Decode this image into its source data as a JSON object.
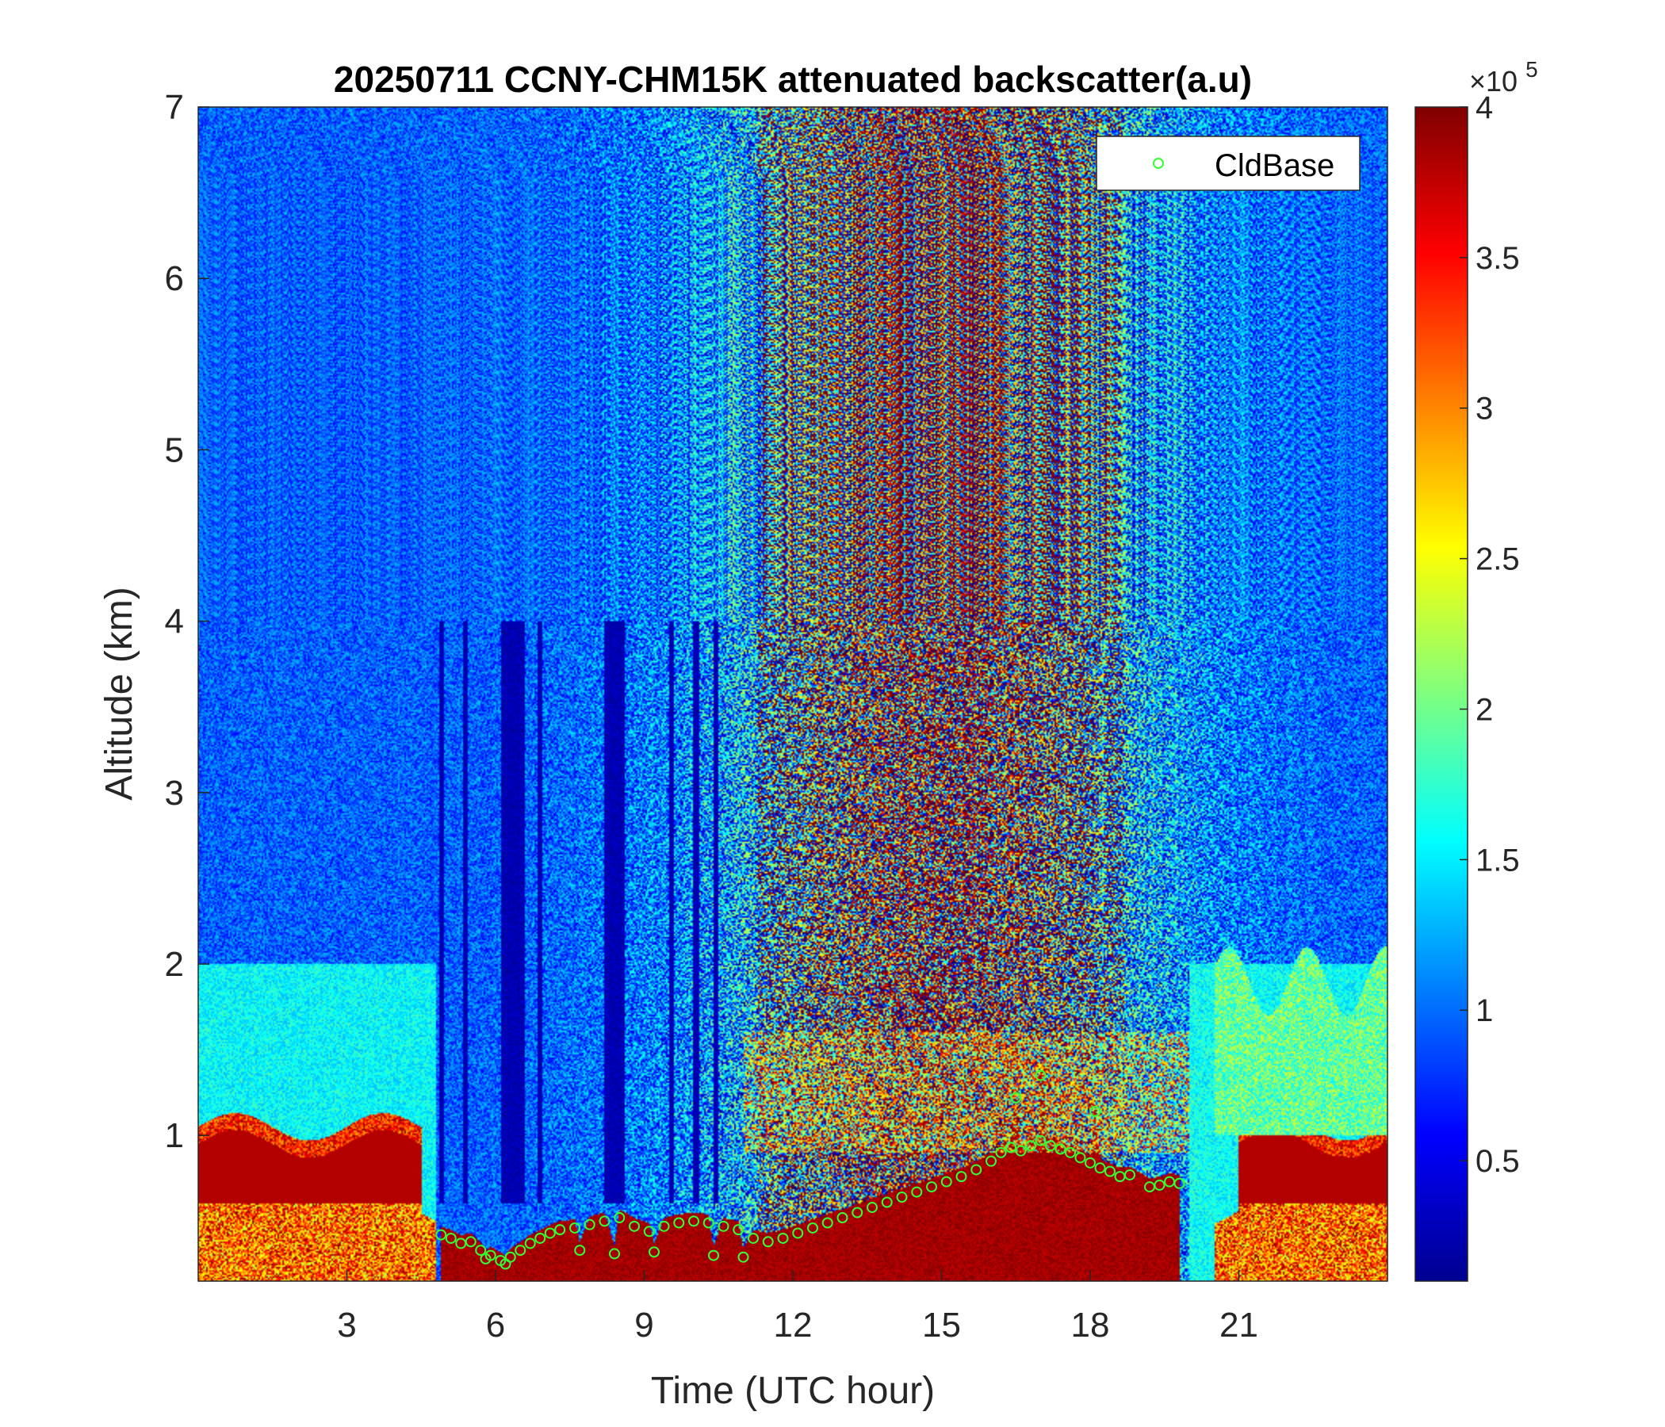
{
  "chart_data": {
    "type": "heatmap",
    "title": "20250711 CCNY-CHM15K attenuated backscatter(a.u)",
    "xlabel": "Time (UTC hour)",
    "ylabel": "Altitude (km)",
    "xlim": [
      0,
      24
    ],
    "ylim": [
      0.15,
      7
    ],
    "x_ticks": [
      3,
      6,
      9,
      12,
      15,
      18,
      21
    ],
    "y_ticks": [
      1,
      2,
      3,
      4,
      5,
      6,
      7
    ],
    "colormap": "jet",
    "colorbar": {
      "label_multiplier": "×10",
      "label_exponent": "5",
      "clim": [
        0.1,
        4.0
      ],
      "ticks": [
        0.5,
        1,
        1.5,
        2,
        2.5,
        3,
        3.5,
        4
      ],
      "tick_labels": [
        "0.5",
        "1",
        "1.5",
        "2",
        "2.5",
        "3",
        "3.5",
        "4"
      ]
    },
    "legend": {
      "location": "top-right",
      "entries": [
        "CldBase"
      ]
    },
    "series": [
      {
        "name": "CldBase",
        "marker": "circle",
        "color": "#33ff33",
        "points": [
          [
            4.9,
            0.42
          ],
          [
            5.1,
            0.4
          ],
          [
            5.3,
            0.37
          ],
          [
            5.5,
            0.38
          ],
          [
            5.7,
            0.33
          ],
          [
            5.9,
            0.3
          ],
          [
            6.1,
            0.27
          ],
          [
            6.3,
            0.29
          ],
          [
            6.5,
            0.33
          ],
          [
            6.7,
            0.37
          ],
          [
            6.9,
            0.4
          ],
          [
            7.1,
            0.43
          ],
          [
            7.3,
            0.45
          ],
          [
            7.6,
            0.46
          ],
          [
            7.9,
            0.48
          ],
          [
            8.2,
            0.5
          ],
          [
            8.5,
            0.52
          ],
          [
            8.8,
            0.47
          ],
          [
            9.1,
            0.44
          ],
          [
            9.4,
            0.47
          ],
          [
            9.7,
            0.49
          ],
          [
            10.0,
            0.5
          ],
          [
            10.3,
            0.49
          ],
          [
            10.6,
            0.47
          ],
          [
            10.9,
            0.45
          ],
          [
            11.2,
            0.4
          ],
          [
            11.5,
            0.38
          ],
          [
            11.8,
            0.4
          ],
          [
            12.1,
            0.43
          ],
          [
            12.4,
            0.46
          ],
          [
            12.7,
            0.49
          ],
          [
            13.0,
            0.52
          ],
          [
            13.3,
            0.55
          ],
          [
            13.6,
            0.58
          ],
          [
            13.9,
            0.61
          ],
          [
            14.2,
            0.64
          ],
          [
            14.5,
            0.67
          ],
          [
            14.8,
            0.7
          ],
          [
            15.1,
            0.73
          ],
          [
            15.4,
            0.76
          ],
          [
            15.7,
            0.8
          ],
          [
            16.0,
            0.85
          ],
          [
            16.2,
            0.9
          ],
          [
            16.4,
            0.93
          ],
          [
            16.6,
            0.91
          ],
          [
            16.8,
            0.94
          ],
          [
            17.0,
            0.97
          ],
          [
            17.2,
            0.94
          ],
          [
            17.4,
            0.92
          ],
          [
            17.6,
            0.9
          ],
          [
            17.8,
            0.87
          ],
          [
            18.0,
            0.84
          ],
          [
            18.2,
            0.81
          ],
          [
            18.4,
            0.79
          ],
          [
            18.6,
            0.76
          ],
          [
            18.8,
            0.77
          ],
          [
            16.5,
            1.22
          ],
          [
            17.0,
            1.35
          ],
          [
            18.1,
            1.14
          ],
          [
            19.2,
            0.7
          ],
          [
            19.4,
            0.71
          ],
          [
            19.6,
            0.73
          ],
          [
            19.8,
            0.72
          ],
          [
            7.7,
            0.33
          ],
          [
            8.4,
            0.31
          ],
          [
            9.2,
            0.32
          ],
          [
            10.4,
            0.3
          ],
          [
            11.0,
            0.29
          ],
          [
            6.2,
            0.25
          ],
          [
            5.8,
            0.28
          ]
        ]
      }
    ]
  }
}
